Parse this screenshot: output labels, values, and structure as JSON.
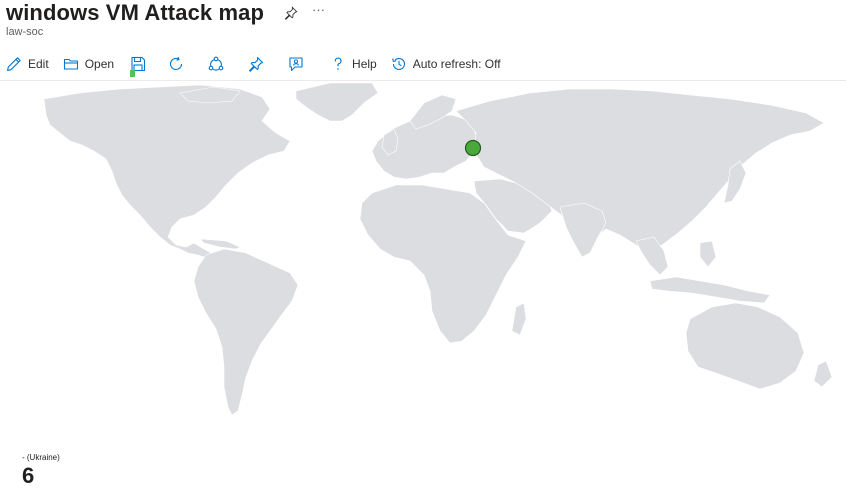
{
  "header": {
    "title": "windows VM Attack map",
    "more_label": "···",
    "subtitle": "law-soc"
  },
  "toolbar": {
    "edit_label": "Edit",
    "open_label": "Open",
    "help_label": "Help",
    "autorefresh_label": "Auto refresh: Off",
    "icons": [
      "edit-icon",
      "folder-open-icon",
      "save-icon",
      "refresh-icon",
      "share-icon",
      "pin-icon",
      "feedback-icon",
      "help-icon",
      "history-icon"
    ]
  },
  "map": {
    "land_color": "#dcdde0",
    "marker_color": "#4aa83c",
    "markers": [
      {
        "country": "Ukraine",
        "count": 6
      }
    ]
  },
  "legend": {
    "label": "- (Ukraine)",
    "value": "6"
  }
}
